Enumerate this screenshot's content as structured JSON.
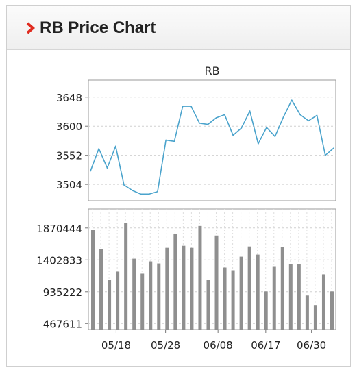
{
  "widget": {
    "title": "RB Price Chart",
    "icon": "chevron-right-icon",
    "accent": "#e02b1f"
  },
  "chart_data": [
    {
      "type": "line",
      "title": "RB",
      "color": "#4aa3cc",
      "yticks": [
        3504,
        3552,
        3600,
        3648
      ],
      "ylim": [
        3477,
        3676
      ],
      "grid": true,
      "values": [
        3526,
        3563,
        3531,
        3567,
        3503,
        3494,
        3488,
        3488,
        3492,
        3577,
        3575,
        3633,
        3633,
        3605,
        3603,
        3614,
        3619,
        3585,
        3597,
        3625,
        3571,
        3598,
        3583,
        3615,
        3643,
        3619,
        3609,
        3618,
        3552,
        3564
      ]
    },
    {
      "type": "bar",
      "title": "",
      "color": "#8f8f8f",
      "yticks": [
        467611,
        935222,
        1402833,
        1870444
      ],
      "ylim": [
        380000,
        2150000
      ],
      "grid": true,
      "xticks": [
        "05/18",
        "05/28",
        "06/08",
        "06/17",
        "06/30"
      ],
      "values": [
        1840000,
        1560000,
        1110000,
        1230000,
        1940000,
        1420000,
        1200000,
        1380000,
        1350000,
        1580000,
        1780000,
        1610000,
        1580000,
        1900000,
        1110000,
        1760000,
        1290000,
        1250000,
        1450000,
        1600000,
        1480000,
        940000,
        1300000,
        1590000,
        1340000,
        1340000,
        880000,
        740000,
        1190000,
        940000
      ]
    }
  ]
}
